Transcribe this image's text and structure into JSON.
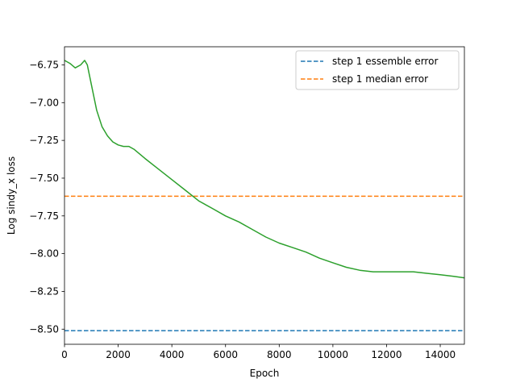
{
  "chart_data": {
    "type": "line",
    "title": "",
    "xlabel": "Epoch",
    "ylabel": "Log sindy_x loss",
    "xlim": [
      0,
      14900
    ],
    "ylim": [
      -8.6,
      -6.63
    ],
    "x_ticks": [
      0,
      2000,
      4000,
      6000,
      8000,
      10000,
      12000,
      14000
    ],
    "y_ticks": [
      -6.75,
      -7.0,
      -7.25,
      -7.5,
      -7.75,
      -8.0,
      -8.25,
      -8.5
    ],
    "x_tick_labels": [
      "0",
      "2000",
      "4000",
      "6000",
      "8000",
      "10000",
      "12000",
      "14000"
    ],
    "y_tick_labels": [
      "−6.75",
      "−7.00",
      "−7.25",
      "−7.50",
      "−7.75",
      "−8.00",
      "−8.25",
      "−8.50"
    ],
    "grid": false,
    "legend_position": "top-right",
    "hlines": [
      {
        "name": "step 1 essemble error",
        "y": -8.51,
        "color": "#1f77b4",
        "style": "dashed"
      },
      {
        "name": "step 1 median error",
        "y": -7.62,
        "color": "#ff7f0e",
        "style": "dashed"
      }
    ],
    "series": [
      {
        "color": "#2ca02c",
        "x": [
          0,
          200,
          400,
          600,
          750,
          850,
          1000,
          1200,
          1400,
          1600,
          1800,
          2000,
          2200,
          2400,
          2600,
          3000,
          3500,
          4000,
          4500,
          5000,
          5500,
          6000,
          6500,
          7000,
          7500,
          8000,
          8500,
          9000,
          9500,
          10000,
          10500,
          11000,
          11500,
          12000,
          12500,
          13000,
          13500,
          14000,
          14500,
          14900
        ],
        "y": [
          -6.72,
          -6.74,
          -6.77,
          -6.75,
          -6.72,
          -6.75,
          -6.88,
          -7.05,
          -7.16,
          -7.22,
          -7.26,
          -7.28,
          -7.29,
          -7.29,
          -7.31,
          -7.37,
          -7.44,
          -7.51,
          -7.58,
          -7.65,
          -7.7,
          -7.75,
          -7.79,
          -7.84,
          -7.89,
          -7.93,
          -7.96,
          -7.99,
          -8.03,
          -8.06,
          -8.09,
          -8.11,
          -8.12,
          -8.12,
          -8.12,
          -8.12,
          -8.13,
          -8.14,
          -8.15,
          -8.16
        ]
      }
    ]
  }
}
